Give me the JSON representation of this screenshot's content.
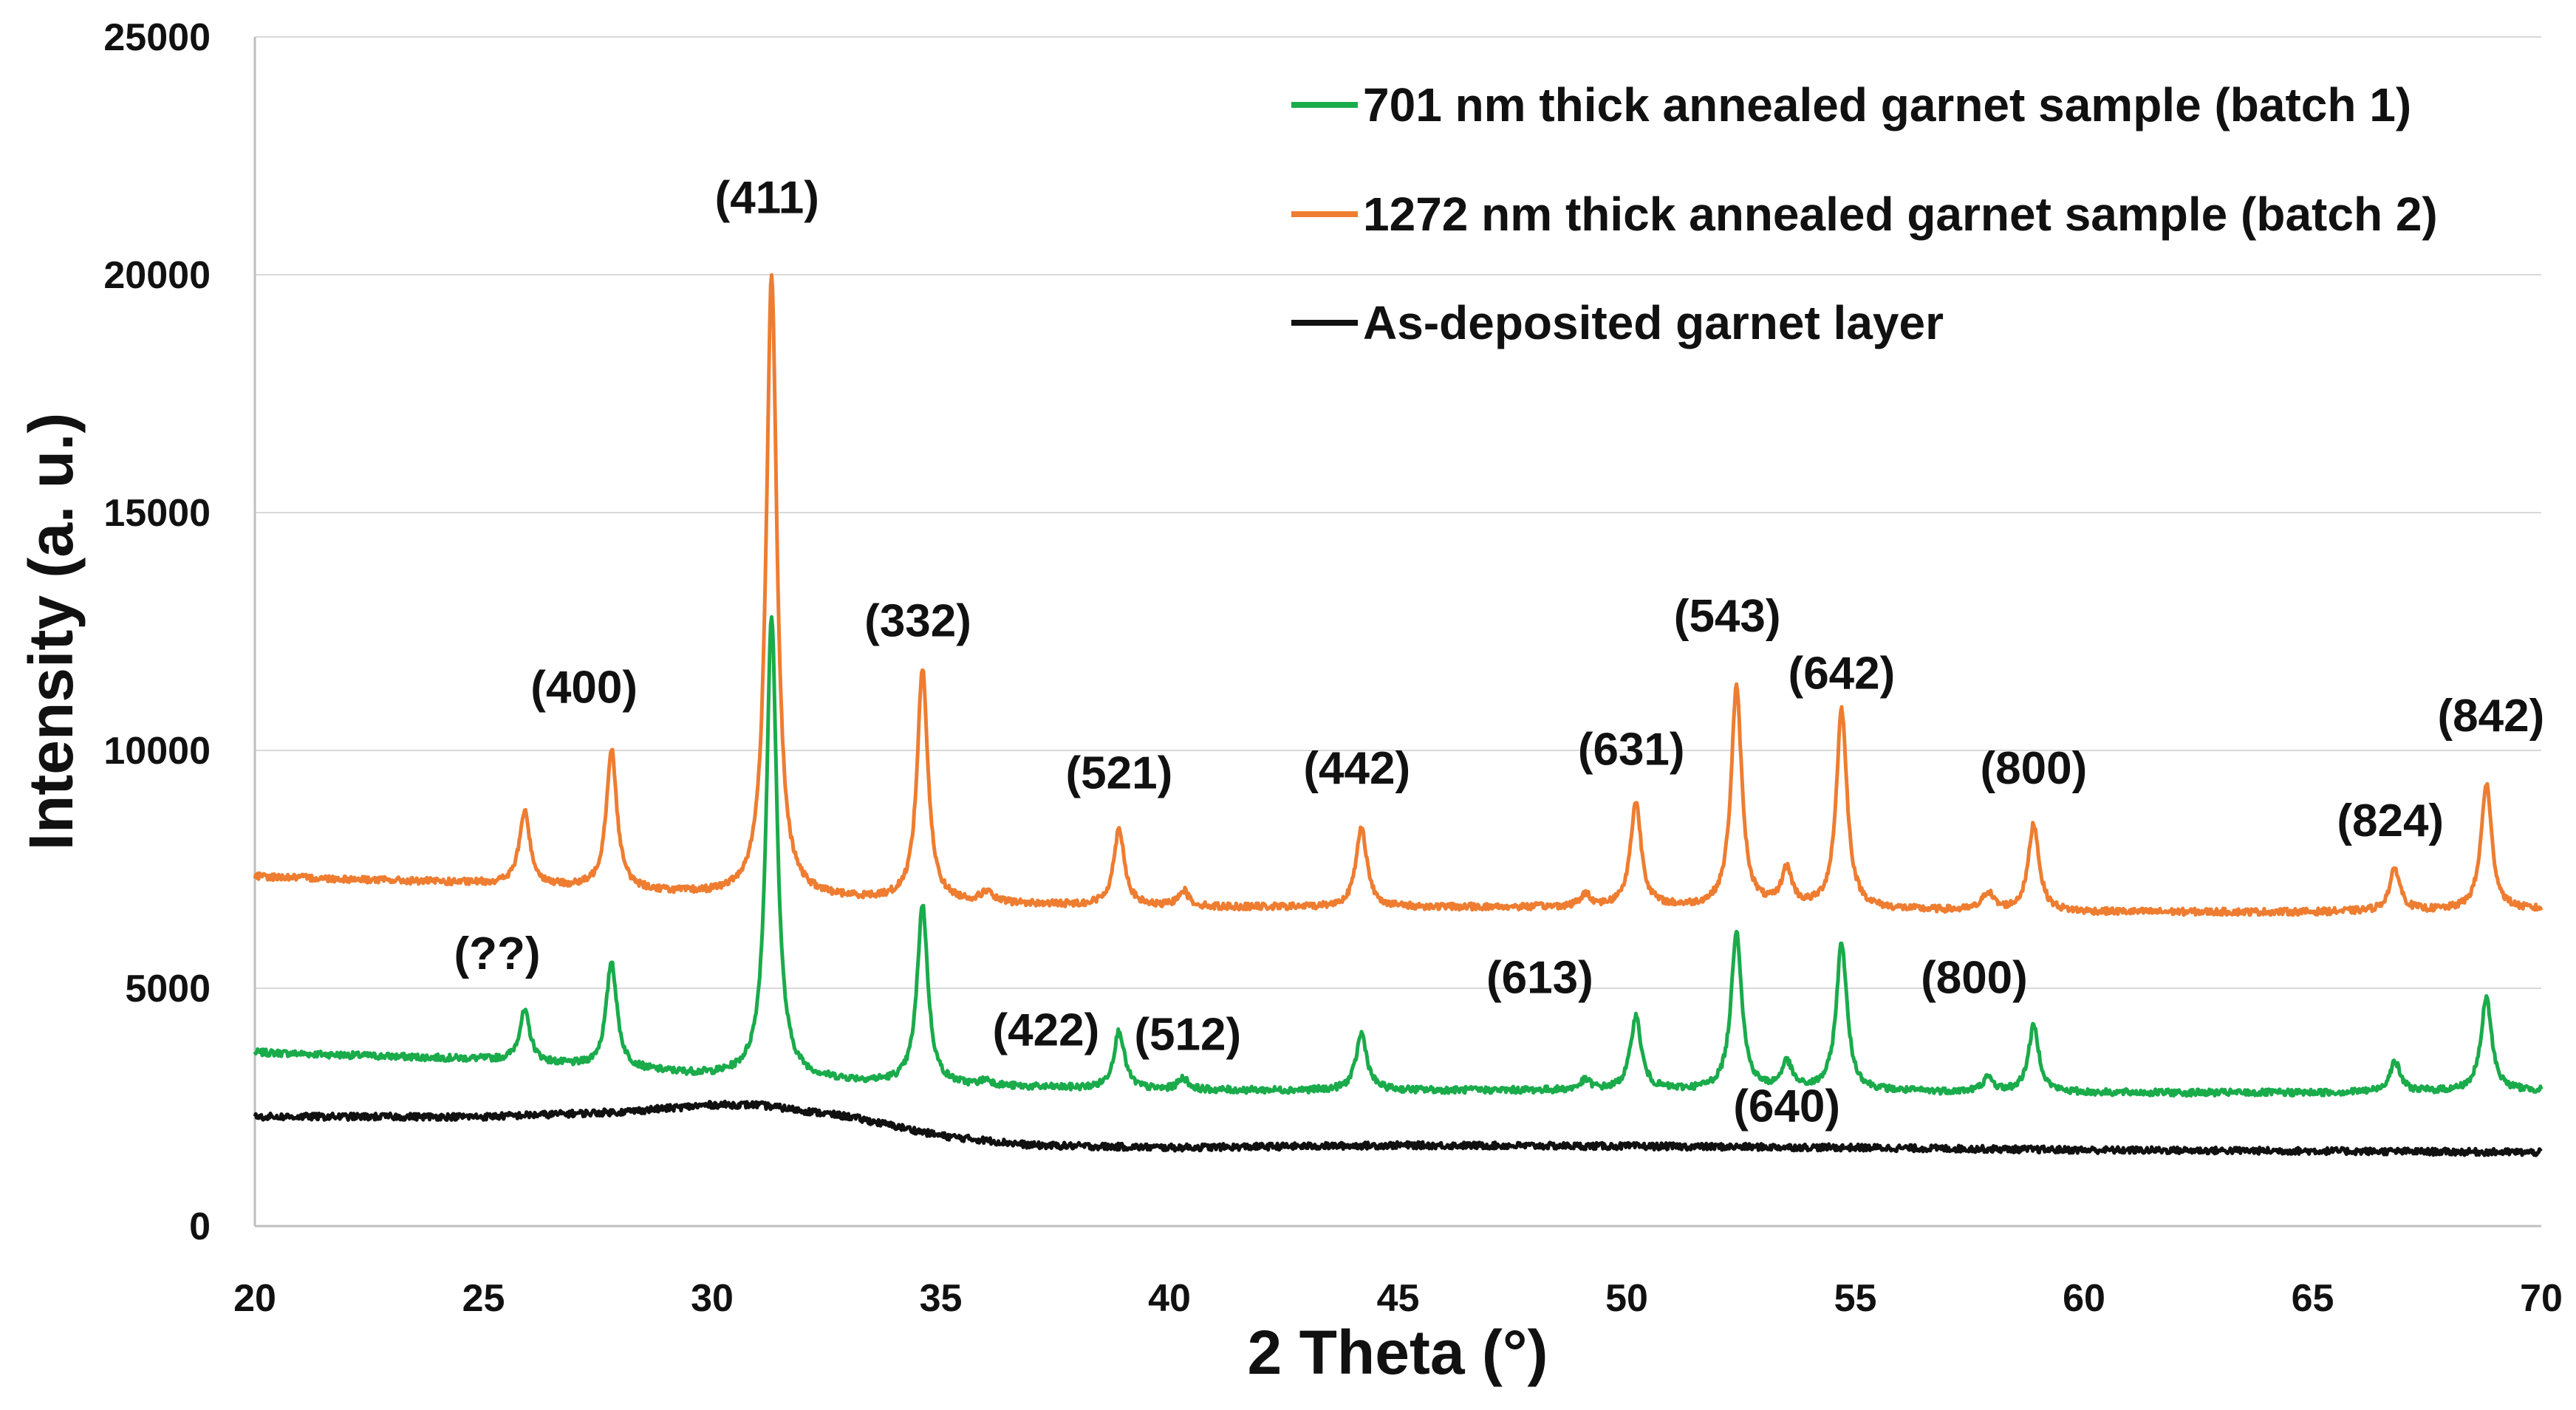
{
  "chart_data": {
    "type": "line",
    "title": "",
    "xlabel": "2 Theta (°)",
    "ylabel": "Intensity (a. u.)",
    "xlim": [
      20,
      70
    ],
    "ylim": [
      0,
      25000
    ],
    "x_ticks": [
      "20",
      "25",
      "30",
      "35",
      "40",
      "45",
      "50",
      "55",
      "60",
      "65",
      "70"
    ],
    "y_ticks": [
      "0",
      "5000",
      "10000",
      "15000",
      "20000",
      "25000"
    ],
    "grid": "horizontal",
    "legend_position": "top-right",
    "series": [
      {
        "name": "701 nm thick annealed garnet sample (batch 1)",
        "color": "#1aab4b",
        "baseline": [
          [
            20,
            3650
          ],
          [
            25,
            3500
          ],
          [
            30,
            3150
          ],
          [
            35,
            2950
          ],
          [
            40,
            2850
          ],
          [
            45,
            2850
          ],
          [
            50,
            2850
          ],
          [
            55,
            2830
          ],
          [
            60,
            2800
          ],
          [
            65,
            2800
          ],
          [
            70,
            2850
          ]
        ],
        "peaks": [
          [
            25.9,
            4500
          ],
          [
            27.8,
            5550
          ],
          [
            31.3,
            12800
          ],
          [
            34.6,
            6750
          ],
          [
            36.0,
            3050
          ],
          [
            38.9,
            4100
          ],
          [
            40.3,
            3100
          ],
          [
            44.2,
            4050
          ],
          [
            49.1,
            3050
          ],
          [
            50.2,
            4400
          ],
          [
            52.4,
            6200
          ],
          [
            53.5,
            3400
          ],
          [
            54.7,
            5950
          ],
          [
            57.9,
            3100
          ],
          [
            58.9,
            4200
          ],
          [
            66.8,
            3450
          ],
          [
            68.8,
            4800
          ]
        ]
      },
      {
        "name": "1272 nm thick annealed garnet sample (batch 2)",
        "color": "#ee7d31",
        "baseline": [
          [
            20,
            7350
          ],
          [
            25,
            7200
          ],
          [
            30,
            6950
          ],
          [
            35,
            6800
          ],
          [
            40,
            6700
          ],
          [
            45,
            6700
          ],
          [
            50,
            6700
          ],
          [
            55,
            6650
          ],
          [
            60,
            6600
          ],
          [
            65,
            6600
          ],
          [
            70,
            6650
          ]
        ],
        "peaks": [
          [
            25.9,
            8700
          ],
          [
            27.8,
            10000
          ],
          [
            31.3,
            20000
          ],
          [
            34.6,
            11700
          ],
          [
            36.0,
            7000
          ],
          [
            38.9,
            8350
          ],
          [
            40.3,
            7050
          ],
          [
            44.2,
            8400
          ],
          [
            49.1,
            6950
          ],
          [
            50.2,
            8900
          ],
          [
            52.4,
            11300
          ],
          [
            53.5,
            7450
          ],
          [
            54.7,
            10850
          ],
          [
            57.9,
            7000
          ],
          [
            58.9,
            8450
          ],
          [
            66.8,
            7500
          ],
          [
            68.8,
            9300
          ]
        ]
      },
      {
        "name": "As-deposited garnet layer",
        "color": "#111111",
        "baseline": [
          [
            20,
            2300
          ],
          [
            25,
            2300
          ],
          [
            28,
            2400
          ],
          [
            30,
            2550
          ],
          [
            31,
            2550
          ],
          [
            33,
            2300
          ],
          [
            35,
            1900
          ],
          [
            37,
            1700
          ],
          [
            40,
            1650
          ],
          [
            45,
            1700
          ],
          [
            50,
            1680
          ],
          [
            55,
            1650
          ],
          [
            60,
            1600
          ],
          [
            65,
            1580
          ],
          [
            70,
            1550
          ]
        ],
        "peaks": []
      }
    ],
    "annotations": [
      {
        "text": "(411)",
        "x": 31.2,
        "y": 21300
      },
      {
        "text": "(400)",
        "x": 27.2,
        "y": 11000
      },
      {
        "text": "(332)",
        "x": 34.5,
        "y": 12400
      },
      {
        "text": "(521)",
        "x": 38.9,
        "y": 9200
      },
      {
        "text": "(442)",
        "x": 44.1,
        "y": 9300
      },
      {
        "text": "(631)",
        "x": 50.1,
        "y": 9700
      },
      {
        "text": "(543)",
        "x": 52.2,
        "y": 12500
      },
      {
        "text": "(642)",
        "x": 54.7,
        "y": 11300
      },
      {
        "text": "(800)",
        "x": 58.9,
        "y": 9300
      },
      {
        "text": "(824)",
        "x": 66.7,
        "y": 8200
      },
      {
        "text": "(842)",
        "x": 68.9,
        "y": 10400
      },
      {
        "text": "(??)",
        "x": 25.3,
        "y": 5400
      },
      {
        "text": "(422)",
        "x": 37.3,
        "y": 3800
      },
      {
        "text": "(512)",
        "x": 40.4,
        "y": 3700
      },
      {
        "text": "(613)",
        "x": 48.1,
        "y": 4900
      },
      {
        "text": "(800)",
        "x": 57.6,
        "y": 4900
      },
      {
        "text": "(640)",
        "x": 53.5,
        "y": 2200
      }
    ]
  }
}
